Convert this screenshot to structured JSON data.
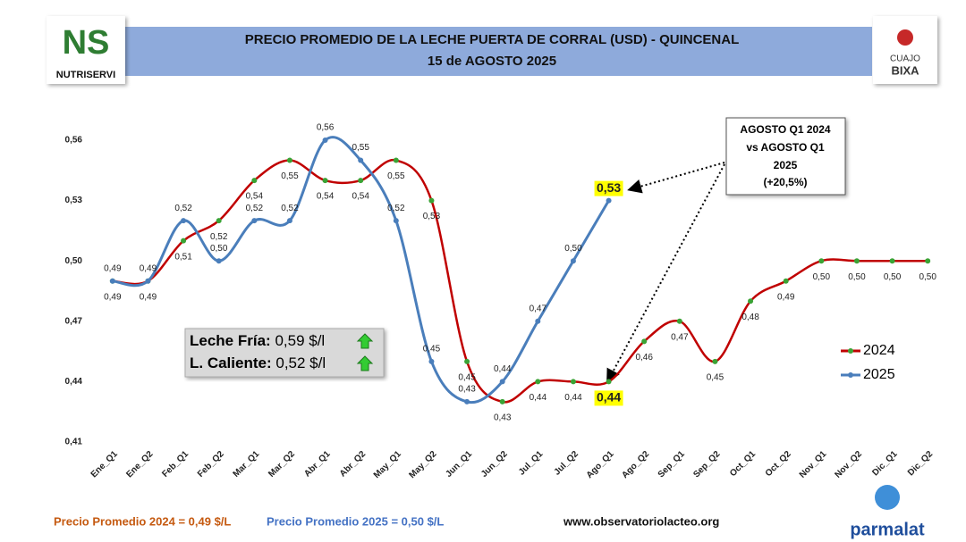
{
  "chart_data": {
    "type": "line",
    "title": "PRECIO PROMEDIO DE LA LECHE PUERTA DE CORRAL (USD) - QUINCENAL",
    "subtitle": "15 de AGOSTO 2025",
    "categories": [
      "Ene_Q1",
      "Ene_Q2",
      "Feb_Q1",
      "Feb_Q2",
      "Mar_Q1",
      "Mar_Q2",
      "Abr_Q1",
      "Abr_Q2",
      "May_Q1",
      "May_Q2",
      "Jun_Q1",
      "Jun_Q2",
      "Jul_Q1",
      "Jul_Q2",
      "Ago_Q1",
      "Ago_Q2",
      "Sep_Q1",
      "Sep_Q2",
      "Oct_Q1",
      "Oct_Q2",
      "Nov_Q1",
      "Nov_Q2",
      "Dic_Q1",
      "Dic_Q2"
    ],
    "series": [
      {
        "name": "2024",
        "color": "#c00000",
        "marker_color": "#3aa335",
        "values": [
          0.49,
          0.49,
          0.51,
          0.52,
          0.54,
          0.55,
          0.54,
          0.54,
          0.55,
          0.53,
          0.45,
          0.43,
          0.44,
          0.44,
          0.44,
          0.46,
          0.47,
          0.45,
          0.48,
          0.49,
          0.5,
          0.5,
          0.5,
          0.5
        ],
        "value_labels": [
          "0,49",
          "0,49",
          "0,51",
          "0,52",
          "0,54",
          "0,55",
          "0,54",
          "0,54",
          "0,55",
          "0,53",
          "0,45",
          "0,43",
          "0,44",
          "0,44",
          "0,44",
          "0,46",
          "0,47",
          "0,45",
          "0,48",
          "0,49",
          "0,50",
          "0,50",
          "0,50",
          "0,50"
        ]
      },
      {
        "name": "2025",
        "color": "#4a7ebb",
        "marker_color": "#4a7ebb",
        "values": [
          0.49,
          0.49,
          0.52,
          0.5,
          0.52,
          0.52,
          0.56,
          0.55,
          0.52,
          0.45,
          0.43,
          0.44,
          0.47,
          0.5,
          0.53,
          null,
          null,
          null,
          null,
          null,
          null,
          null,
          null,
          null
        ],
        "value_labels": [
          "0,49",
          "0,49",
          "0,52",
          "0,50",
          "0,52",
          "0,52",
          "0,56",
          "0,55",
          "0,52",
          "0,45",
          "0,43",
          "0,44",
          "0,47",
          "0,50",
          "0,53",
          null,
          null,
          null,
          null,
          null,
          null,
          null,
          null,
          null
        ]
      }
    ],
    "ylim": [
      0.41,
      0.56
    ],
    "yticks": [
      {
        "value": 0.41,
        "label": "0,41"
      },
      {
        "value": 0.44,
        "label": "0,44"
      },
      {
        "value": 0.47,
        "label": "0,47"
      },
      {
        "value": 0.5,
        "label": "0,50"
      },
      {
        "value": 0.53,
        "label": "0,53"
      },
      {
        "value": 0.56,
        "label": "0,56"
      }
    ],
    "grid": false,
    "legend": "right",
    "annotation": [
      "AGOSTO Q1 2024",
      "vs AGOSTO Q1",
      "2025",
      "(+20,5%)"
    ],
    "info": [
      {
        "label": "Leche Fría:",
        "value": "0,59 $/l"
      },
      {
        "label": "L. Caliente:",
        "value": "0,52 $/l"
      }
    ],
    "footer": [
      "Precio Promedio 2024 = 0,49 $/L",
      "Precio Promedio 2025 = 0,50 $/L",
      "www.observatoriolacteo.org"
    ],
    "logos": {
      "left": [
        "NS",
        "NUTRISERVI"
      ],
      "right": [
        "CUAJO",
        "BIXA"
      ],
      "bottom": "parmalat"
    }
  }
}
